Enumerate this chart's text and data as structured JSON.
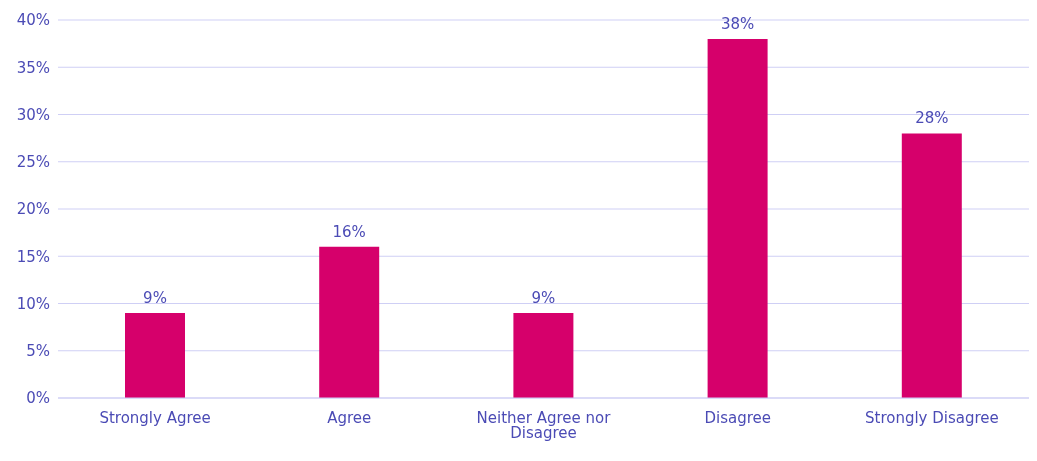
{
  "chart_data": {
    "type": "bar",
    "categories": [
      "Strongly Agree",
      "Agree",
      "Neither Agree nor Disagree",
      "Disagree",
      "Strongly Disagree"
    ],
    "values": [
      9,
      16,
      9,
      38,
      28
    ],
    "value_labels": [
      "9%",
      "16%",
      "9%",
      "38%",
      "28%"
    ],
    "color": "#d6006b",
    "ylim": [
      0,
      40
    ],
    "yticks": [
      {
        "value": 0,
        "label": "0%"
      },
      {
        "value": 5,
        "label": "5%"
      },
      {
        "value": 10,
        "label": "10%"
      },
      {
        "value": 15,
        "label": "15%"
      },
      {
        "value": 20,
        "label": "20%"
      },
      {
        "value": 25,
        "label": "25%"
      },
      {
        "value": 30,
        "label": "30%"
      },
      {
        "value": 35,
        "label": "35%"
      },
      {
        "value": 40,
        "label": "40%"
      }
    ],
    "grid": "y"
  }
}
